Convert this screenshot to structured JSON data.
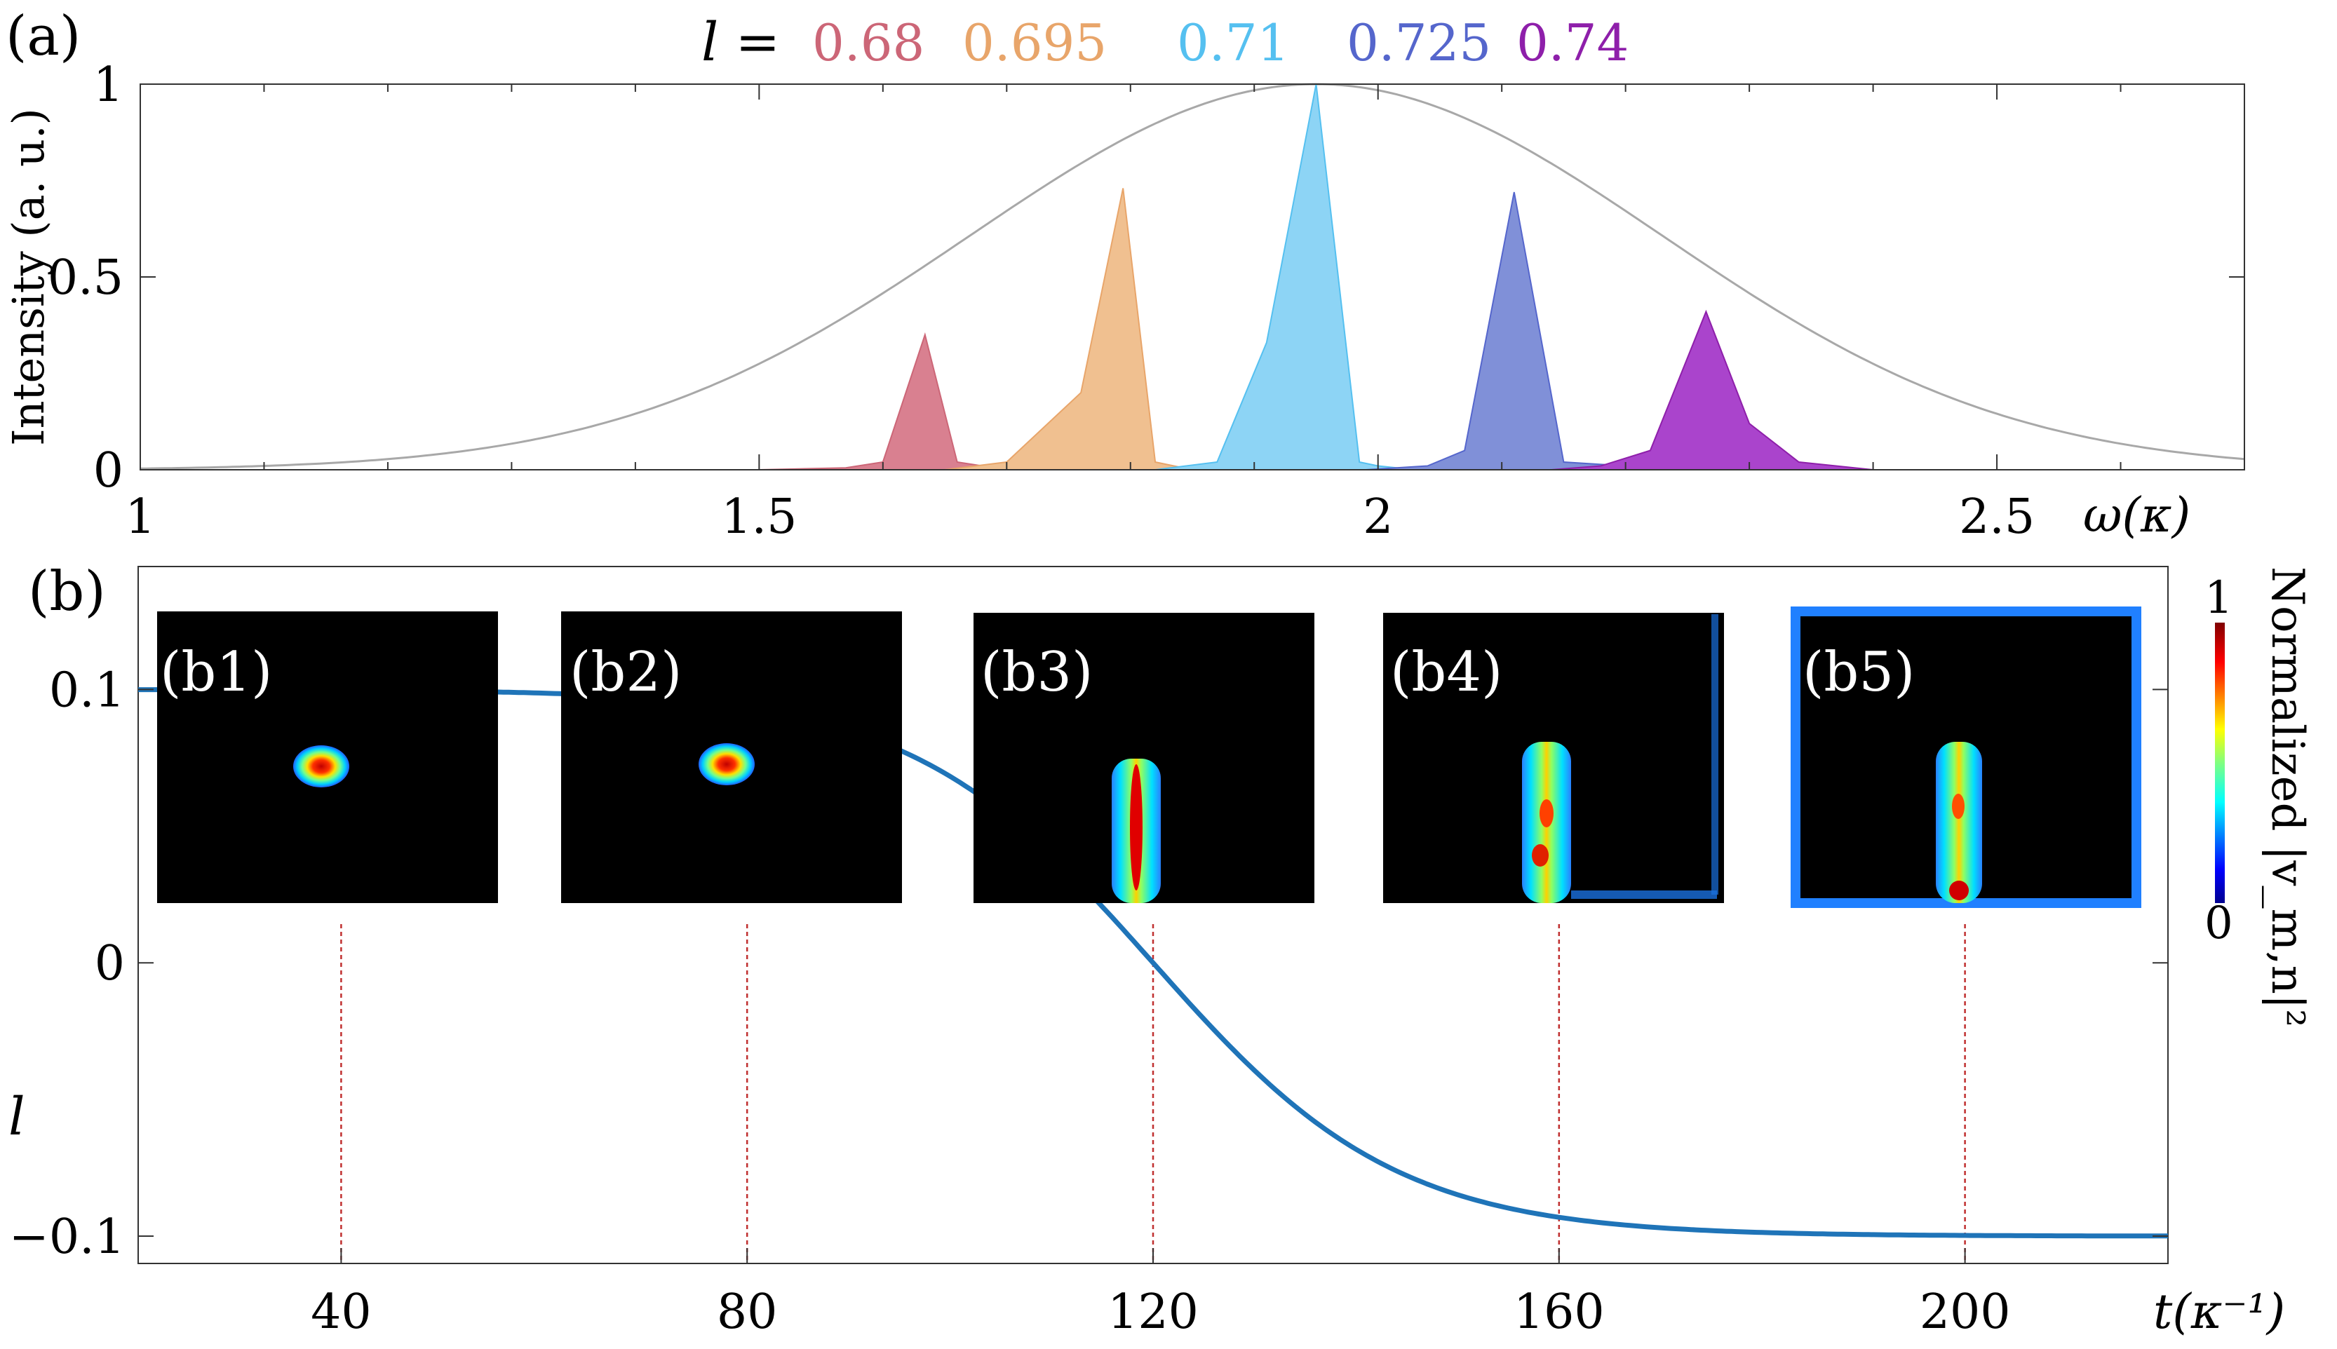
{
  "figure": {
    "panel_a_label": "(a)",
    "panel_b_label": "(b)"
  },
  "chart_data": [
    {
      "type": "area",
      "legend": {
        "prefix": "l =",
        "placement": "top-center",
        "entries": [
          {
            "label": "0.68",
            "color": "#cc6677"
          },
          {
            "label": "0.695",
            "color": "#e8a56a"
          },
          {
            "label": "0.71",
            "color": "#55c0f0"
          },
          {
            "label": "0.725",
            "color": "#5566cc"
          },
          {
            "label": "0.74",
            "color": "#8e1faa"
          }
        ]
      },
      "xlabel": "ω(κ)",
      "ylabel": "Intensity (a. u.)",
      "xlim": [
        1,
        2.7
      ],
      "ylim": [
        0,
        1
      ],
      "xticks": [
        "1",
        "1.5",
        "2",
        "2.5"
      ],
      "yticks": [
        "0",
        "0.5",
        "1"
      ],
      "grid": false,
      "envelope": {
        "center": 1.95,
        "sigma": 0.28,
        "color": "#a8a8a8"
      },
      "series": [
        {
          "color": "#cc6677",
          "fill": "#d98090",
          "points": [
            [
              1.5,
              0
            ],
            [
              1.57,
              0.005
            ],
            [
              1.6,
              0.02
            ],
            [
              1.634,
              0.35
            ],
            [
              1.66,
              0.02
            ],
            [
              1.7,
              0
            ]
          ]
        },
        {
          "color": "#e8a56a",
          "fill": "#f0c090",
          "points": [
            [
              1.65,
              0
            ],
            [
              1.7,
              0.02
            ],
            [
              1.76,
              0.2
            ],
            [
              1.794,
              0.73
            ],
            [
              1.82,
              0.02
            ],
            [
              1.85,
              0
            ]
          ]
        },
        {
          "color": "#55c0f0",
          "fill": "#8dd4f5",
          "points": [
            [
              1.82,
              0
            ],
            [
              1.87,
              0.02
            ],
            [
              1.91,
              0.33
            ],
            [
              1.95,
              1.0
            ],
            [
              1.985,
              0.02
            ],
            [
              2.0,
              0.01
            ],
            [
              2.03,
              0
            ]
          ]
        },
        {
          "color": "#5566cc",
          "fill": "#8090d8",
          "points": [
            [
              1.99,
              0
            ],
            [
              2.04,
              0.01
            ],
            [
              2.07,
              0.05
            ],
            [
              2.11,
              0.72
            ],
            [
              2.15,
              0.02
            ],
            [
              2.2,
              0.01
            ],
            [
              2.23,
              0
            ]
          ]
        },
        {
          "color": "#8e1faa",
          "fill": "#aa44cc",
          "points": [
            [
              2.14,
              0
            ],
            [
              2.18,
              0.01
            ],
            [
              2.22,
              0.05
            ],
            [
              2.265,
              0.41
            ],
            [
              2.3,
              0.12
            ],
            [
              2.34,
              0.02
            ],
            [
              2.4,
              0
            ]
          ]
        }
      ]
    },
    {
      "type": "line",
      "xlabel": "t(κ⁻¹)",
      "ylabel": "l",
      "xlim": [
        20,
        220
      ],
      "ylim": [
        -0.11,
        0.145
      ],
      "xticks": [
        "40",
        "80",
        "120",
        "160",
        "200"
      ],
      "yticks": [
        "0.1",
        "0",
        "−0.1"
      ],
      "grid": false,
      "series": [
        {
          "color": "#1f74b8",
          "formula": "l(t) = 0.1 - 0.2 / (1 + exp(-(t - 120) / 12))",
          "x_range": [
            20,
            220
          ]
        }
      ],
      "markers": [
        {
          "t": 40,
          "label": "(b1)"
        },
        {
          "t": 80,
          "label": "(b2)"
        },
        {
          "t": 120,
          "label": "(b3)"
        },
        {
          "t": 160,
          "label": "(b4)"
        },
        {
          "t": 200,
          "label": "(b5)"
        }
      ],
      "marker_color": "#c03030",
      "colorbar": {
        "label": "Normalized |v_m,n|²",
        "max_label": "1",
        "min_label": "0"
      }
    }
  ]
}
